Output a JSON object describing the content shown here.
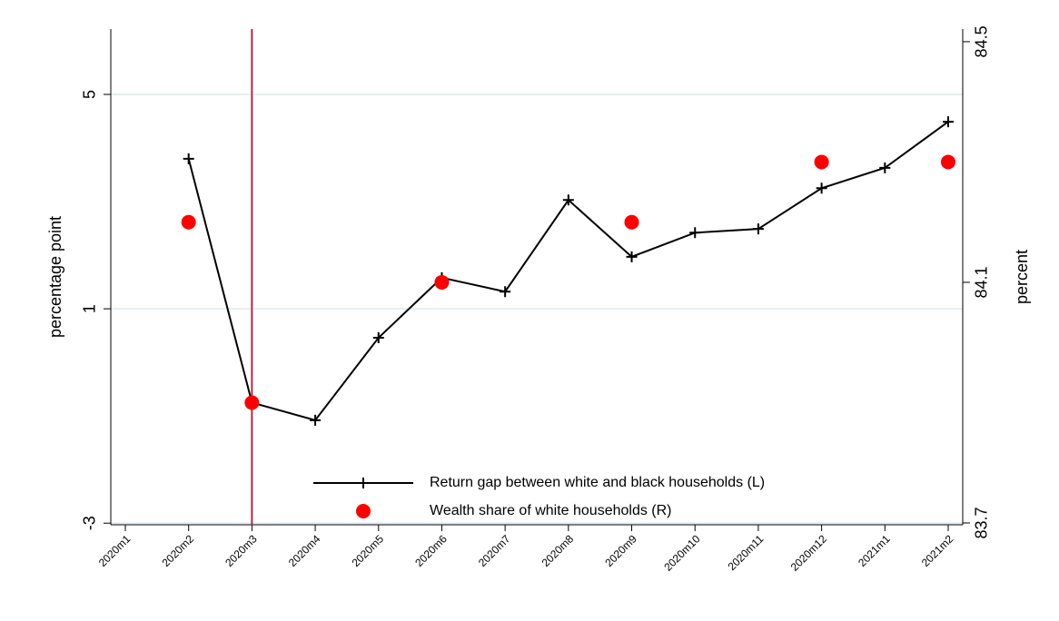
{
  "chart_data": {
    "type": "line",
    "categories": [
      "2020m1",
      "2020m2",
      "2020m3",
      "2020m4",
      "2020m5",
      "2020m6",
      "2020m7",
      "2020m8",
      "2020m9",
      "2020m10",
      "2020m11",
      "2020m12",
      "2021m1",
      "2021m2"
    ],
    "ylabel": "percentage point",
    "y2label": "percent",
    "ylim": [
      -3.03,
      6.22
    ],
    "yticks": [
      -3,
      1,
      5
    ],
    "y2lim": [
      83.697,
      84.521
    ],
    "y2ticks": [
      83.7,
      84.1,
      84.5
    ],
    "grid": true,
    "grid_color": "#dce9ef",
    "vline_at": "2020m3",
    "vline_color": "#b22a44",
    "legend": "bottom",
    "series": [
      {
        "name": "Return gap between white and black households (L)",
        "color": "#000000",
        "marker": "plus",
        "connect": true,
        "values": [
          null,
          3.8,
          -0.75,
          -1.08,
          0.46,
          1.58,
          1.32,
          3.03,
          1.97,
          2.42,
          2.49,
          3.25,
          3.63,
          4.49
        ]
      },
      {
        "name": "Wealth share of white households (R)",
        "color": "#ff0000",
        "marker": "circle",
        "connect": false,
        "axis": "y2",
        "values": [
          null,
          84.2,
          83.9,
          null,
          null,
          84.1,
          null,
          null,
          84.2,
          null,
          null,
          84.3,
          null,
          84.3
        ]
      }
    ]
  }
}
